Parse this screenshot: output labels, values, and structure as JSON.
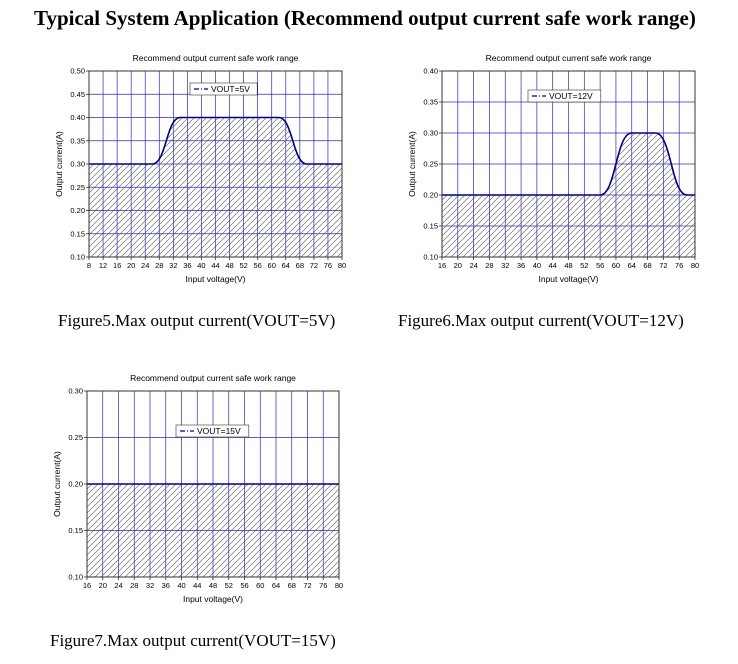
{
  "page": {
    "title": "Typical System Application (Recommend output current safe work range)"
  },
  "colors": {
    "grid": "#2b2bb3",
    "curve": "#000080",
    "hatch": "#555555",
    "axis": "#333333"
  },
  "figures": [
    {
      "caption": "Figure5.Max output current(VOUT=5V)"
    },
    {
      "caption": "Figure6.Max output current(VOUT=12V)"
    },
    {
      "caption": "Figure7.Max output current(VOUT=15V)"
    }
  ],
  "chart_data": [
    {
      "type": "area",
      "title": "Recommend output current safe work range",
      "xlabel": "Input voltage(V)",
      "ylabel": "Output current(A)",
      "xlim": [
        8,
        80
      ],
      "ylim": [
        0.1,
        0.5
      ],
      "x_ticks": [
        "8",
        "12",
        "16",
        "20",
        "24",
        "28",
        "32",
        "36",
        "40",
        "44",
        "48",
        "52",
        "56",
        "60",
        "64",
        "68",
        "72",
        "76",
        "80"
      ],
      "y_ticks": [
        "0.10",
        "0.15",
        "0.20",
        "0.25",
        "0.30",
        "0.35",
        "0.40",
        "0.45",
        "0.50"
      ],
      "grid": true,
      "legend_position": "top-center",
      "series": [
        {
          "name": "VOUT=5V",
          "x": [
            8,
            26,
            34,
            62,
            70,
            80
          ],
          "y": [
            0.3,
            0.3,
            0.4,
            0.4,
            0.3,
            0.3
          ]
        }
      ]
    },
    {
      "type": "area",
      "title": "Recommend output current safe work range",
      "xlabel": "Input voltage(V)",
      "ylabel": "Output current(A)",
      "xlim": [
        16,
        80
      ],
      "ylim": [
        0.1,
        0.4
      ],
      "x_ticks": [
        "16",
        "20",
        "24",
        "28",
        "32",
        "36",
        "40",
        "44",
        "48",
        "52",
        "56",
        "60",
        "64",
        "68",
        "72",
        "76",
        "80"
      ],
      "y_ticks": [
        "0.10",
        "0.15",
        "0.20",
        "0.25",
        "0.30",
        "0.35",
        "0.40"
      ],
      "grid": true,
      "legend_position": "top-center",
      "series": [
        {
          "name": "VOUT=12V",
          "x": [
            16,
            56,
            64,
            70,
            78,
            80
          ],
          "y": [
            0.2,
            0.2,
            0.3,
            0.3,
            0.2,
            0.2
          ]
        }
      ]
    },
    {
      "type": "area",
      "title": "Recommend output current safe work range",
      "xlabel": "Input voltage(V)",
      "ylabel": "Output current(A)",
      "xlim": [
        16,
        80
      ],
      "ylim": [
        0.1,
        0.3
      ],
      "x_ticks": [
        "16",
        "20",
        "24",
        "28",
        "32",
        "36",
        "40",
        "44",
        "48",
        "52",
        "56",
        "60",
        "64",
        "68",
        "72",
        "76",
        "80"
      ],
      "y_ticks": [
        "0.10",
        "0.15",
        "0.20",
        "0.25",
        "0.30"
      ],
      "grid": true,
      "legend_position": "upper-left",
      "series": [
        {
          "name": "VOUT=15V",
          "x": [
            16,
            80
          ],
          "y": [
            0.2,
            0.2
          ]
        }
      ]
    }
  ]
}
